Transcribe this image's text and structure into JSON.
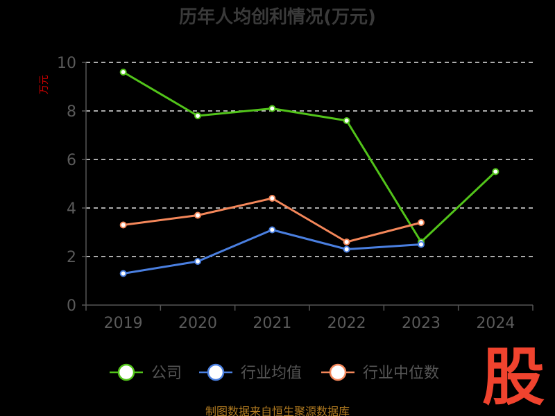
{
  "title": "历年人均创利情况(万元)",
  "unit_label": "万元",
  "source": "制图数据来自恒生聚源数据库",
  "logo_text": "股",
  "colors": {
    "background": "#000000",
    "公司": "#52c41a",
    "行业均值": "#4a7fe0",
    "行业中位数": "#f4875a",
    "grid": "#e6e6e6",
    "axis": "#555555"
  },
  "chart_data": {
    "type": "line",
    "title": "历年人均创利情况(万元)",
    "ylabel": "万元",
    "xlabel": "",
    "categories": [
      "2019",
      "2020",
      "2021",
      "2022",
      "2023",
      "2024"
    ],
    "ylim": [
      0,
      10
    ],
    "yticks": [
      0,
      2,
      4,
      6,
      8,
      10
    ],
    "grid": true,
    "legend_position": "bottom-center",
    "series": [
      {
        "name": "公司",
        "values": [
          9.6,
          7.8,
          8.1,
          7.6,
          2.6,
          5.5
        ]
      },
      {
        "name": "行业均值",
        "values": [
          1.3,
          1.8,
          3.1,
          2.3,
          2.5,
          null
        ]
      },
      {
        "name": "行业中位数",
        "values": [
          3.3,
          3.7,
          4.4,
          2.6,
          3.4,
          null
        ]
      }
    ]
  }
}
